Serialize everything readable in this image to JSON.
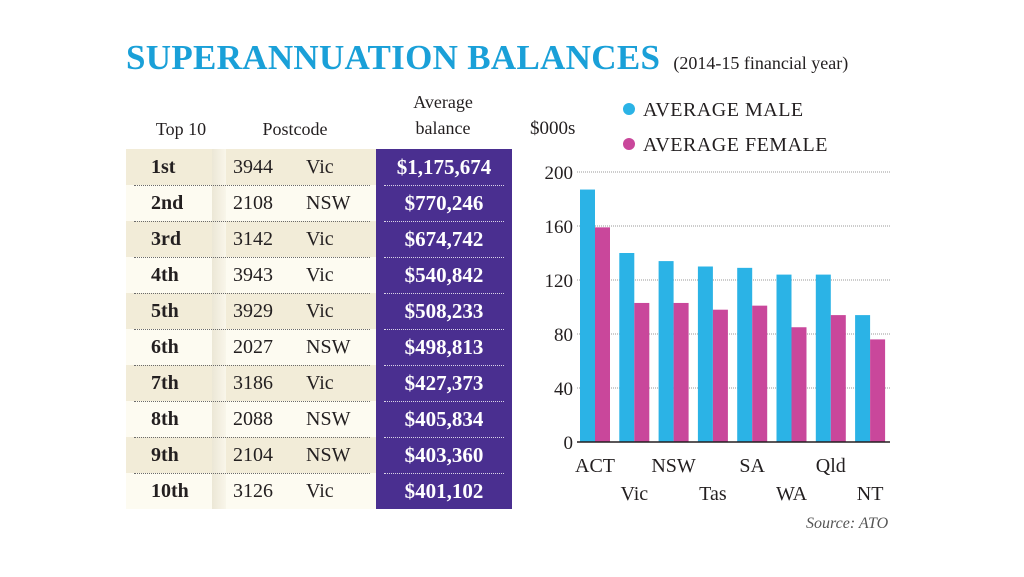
{
  "title": "SUPERANNUATION BALANCES",
  "subtitle": "(2014-15 financial year)",
  "table": {
    "headers": {
      "rank": "Top 10",
      "postcode": "Postcode",
      "balance_line1": "Average",
      "balance_line2": "balance"
    },
    "rows": [
      {
        "rank": "1st",
        "postcode": "3944",
        "state": "Vic",
        "balance": "$1,175,674"
      },
      {
        "rank": "2nd",
        "postcode": "2108",
        "state": "NSW",
        "balance": "$770,246"
      },
      {
        "rank": "3rd",
        "postcode": "3142",
        "state": "Vic",
        "balance": "$674,742"
      },
      {
        "rank": "4th",
        "postcode": "3943",
        "state": "Vic",
        "balance": "$540,842"
      },
      {
        "rank": "5th",
        "postcode": "3929",
        "state": "Vic",
        "balance": "$508,233"
      },
      {
        "rank": "6th",
        "postcode": "2027",
        "state": "NSW",
        "balance": "$498,813"
      },
      {
        "rank": "7th",
        "postcode": "3186",
        "state": "Vic",
        "balance": "$427,373"
      },
      {
        "rank": "8th",
        "postcode": "2088",
        "state": "NSW",
        "balance": "$405,834"
      },
      {
        "rank": "9th",
        "postcode": "2104",
        "state": "NSW",
        "balance": "$403,360"
      },
      {
        "rank": "10th",
        "postcode": "3126",
        "state": "Vic",
        "balance": "$401,102"
      }
    ]
  },
  "chart_data": {
    "type": "bar",
    "ylabel": "$000s",
    "ylim": [
      0,
      200
    ],
    "yticks": [
      0,
      40,
      80,
      120,
      160,
      200
    ],
    "grid": true,
    "legend_position": "top-right",
    "categories": [
      "ACT",
      "Vic",
      "NSW",
      "Tas",
      "SA",
      "WA",
      "Qld",
      "NT"
    ],
    "series": [
      {
        "name": "AVERAGE MALE",
        "color": "#2bb3e6",
        "values": [
          187,
          140,
          134,
          130,
          129,
          124,
          124,
          94
        ]
      },
      {
        "name": "AVERAGE FEMALE",
        "color": "#c9479b",
        "values": [
          159,
          103,
          103,
          98,
          101,
          85,
          94,
          76
        ]
      }
    ]
  },
  "source": "Source: ATO",
  "colors": {
    "title": "#1aa0d8",
    "table_purple": "#4a2f90",
    "row_light": "#fdfbf1",
    "row_dark": "#f2ecd8"
  }
}
